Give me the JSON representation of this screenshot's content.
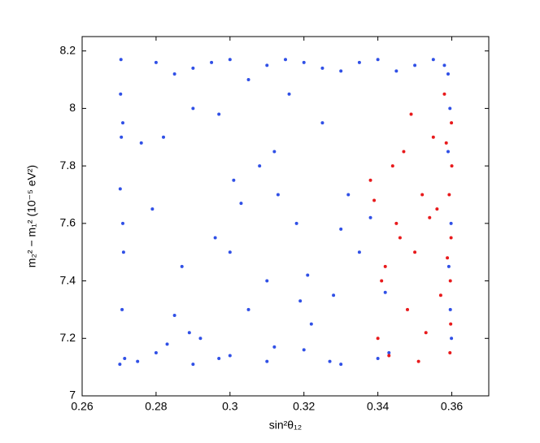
{
  "chart_data": {
    "type": "scatter",
    "xlabel": "sin²θ₁₂",
    "ylabel": "m₂² − m₁² (10⁻⁵ eV²)",
    "xlim": [
      0.26,
      0.37
    ],
    "xticks": [
      0.26,
      0.28,
      0.3,
      0.32,
      0.34,
      0.36
    ],
    "ylim": [
      7,
      8.25
    ],
    "yticks": [
      7,
      7.2,
      7.4,
      7.6,
      7.8,
      8,
      8.2
    ],
    "series": [
      {
        "color": "#3050e6",
        "x": [
          0.2705,
          0.271,
          0.2703,
          0.2712,
          0.2708,
          0.2702,
          0.2715,
          0.2706,
          0.271,
          0.2704,
          0.28,
          0.29,
          0.3,
          0.31,
          0.32,
          0.33,
          0.34,
          0.35,
          0.285,
          0.295,
          0.305,
          0.315,
          0.325,
          0.335,
          0.345,
          0.355,
          0.358,
          0.359,
          0.275,
          0.28,
          0.29,
          0.3,
          0.31,
          0.32,
          0.33,
          0.34,
          0.283,
          0.297,
          0.312,
          0.327,
          0.343,
          0.3595,
          0.359,
          0.3598,
          0.3592,
          0.3596,
          0.3599,
          0.282,
          0.29,
          0.301,
          0.312,
          0.318,
          0.325,
          0.332,
          0.287,
          0.296,
          0.305,
          0.31,
          0.322,
          0.335,
          0.279,
          0.292,
          0.308,
          0.316,
          0.328,
          0.3,
          0.285,
          0.338,
          0.313,
          0.297,
          0.321,
          0.276,
          0.342,
          0.33,
          0.289,
          0.303,
          0.319
        ],
        "values": [
          8.17,
          7.95,
          7.72,
          7.5,
          7.3,
          7.11,
          7.13,
          7.9,
          7.6,
          8.05,
          8.16,
          8.14,
          8.17,
          8.15,
          8.16,
          8.13,
          8.17,
          8.15,
          8.12,
          8.16,
          8.1,
          8.17,
          8.14,
          8.16,
          8.13,
          8.17,
          8.15,
          8.12,
          7.12,
          7.15,
          7.11,
          7.14,
          7.12,
          7.16,
          7.11,
          7.13,
          7.18,
          7.13,
          7.17,
          7.12,
          7.15,
          8.0,
          7.85,
          7.6,
          7.45,
          7.3,
          7.2,
          7.9,
          8.0,
          7.75,
          7.85,
          7.6,
          7.95,
          7.7,
          7.45,
          7.55,
          7.3,
          7.4,
          7.25,
          7.5,
          7.65,
          7.2,
          7.8,
          8.05,
          7.35,
          7.5,
          7.28,
          7.62,
          7.7,
          7.98,
          7.42,
          7.88,
          7.36,
          7.58,
          7.22,
          7.67,
          7.33
        ]
      },
      {
        "color": "#e81a1c",
        "x": [
          0.36,
          0.3598,
          0.3596,
          0.3599,
          0.3597,
          0.3595,
          0.358,
          0.355,
          0.352,
          0.35,
          0.348,
          0.345,
          0.342,
          0.34,
          0.338,
          0.357,
          0.354,
          0.351,
          0.347,
          0.344,
          0.341,
          0.356,
          0.353,
          0.349,
          0.346,
          0.343,
          0.339,
          0.3593,
          0.3588,
          0.3585
        ],
        "values": [
          7.8,
          7.55,
          7.4,
          7.95,
          7.25,
          7.15,
          8.05,
          7.9,
          7.7,
          7.5,
          7.3,
          7.6,
          7.45,
          7.2,
          7.75,
          7.35,
          7.62,
          7.12,
          7.85,
          7.8,
          7.4,
          7.65,
          7.22,
          7.98,
          7.55,
          7.14,
          7.68,
          7.7,
          7.48,
          7.88
        ]
      }
    ]
  }
}
